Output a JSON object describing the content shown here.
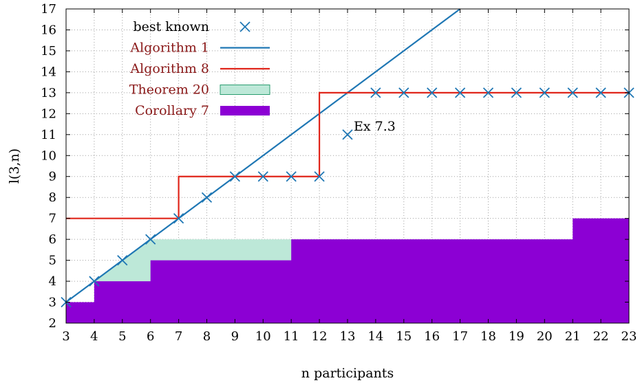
{
  "chart_data": {
    "type": "line",
    "xlabel": "n participants",
    "ylabel": "l(3,n)",
    "xlim": [
      3,
      23
    ],
    "ylim": [
      2,
      17
    ],
    "xticks": [
      3,
      4,
      5,
      6,
      7,
      8,
      9,
      10,
      11,
      12,
      13,
      14,
      15,
      16,
      17,
      18,
      19,
      20,
      21,
      22,
      23
    ],
    "yticks": [
      2,
      3,
      4,
      5,
      6,
      7,
      8,
      9,
      10,
      11,
      12,
      13,
      14,
      15,
      16,
      17
    ],
    "grid": true,
    "legend_position": "top-left",
    "colors": {
      "best_known": "#1f77b4",
      "algorithm1": "#1f77b4",
      "algorithm8": "#e0251a",
      "theorem20_fill": "#bde8d8",
      "theorem20_edge": "#2a9d6f",
      "corollary7": "#8c00d4",
      "legend_text": "#8b1a1a"
    },
    "series": [
      {
        "name": "best known",
        "kind": "scatter",
        "x": [
          3,
          4,
          5,
          6,
          7,
          8,
          9,
          10,
          11,
          12,
          13,
          14,
          15,
          16,
          17,
          18,
          19,
          20,
          21,
          22,
          23
        ],
        "y": [
          3,
          4,
          5,
          6,
          7,
          8,
          9,
          9,
          9,
          9,
          11,
          13,
          13,
          13,
          13,
          13,
          13,
          13,
          13,
          13,
          13
        ]
      },
      {
        "name": "Algorithm 1",
        "kind": "line",
        "x": [
          3,
          17
        ],
        "y": [
          3,
          17
        ]
      },
      {
        "name": "Algorithm 8",
        "kind": "step",
        "x": [
          3,
          7,
          7,
          12,
          12,
          23
        ],
        "y": [
          7,
          7,
          9,
          9,
          13,
          13
        ]
      },
      {
        "name": "Theorem 20",
        "kind": "area",
        "x": [
          3,
          4,
          4,
          5,
          6,
          6,
          11,
          11,
          23
        ],
        "y": [
          3,
          3,
          4,
          5,
          6,
          6,
          6,
          6,
          6
        ]
      },
      {
        "name": "Corollary 7",
        "kind": "area",
        "x": [
          3,
          4,
          4,
          6,
          6,
          11,
          11,
          21,
          21,
          23
        ],
        "y": [
          3,
          3,
          4,
          4,
          5,
          5,
          6,
          6,
          7,
          7
        ]
      }
    ],
    "annotations": [
      {
        "text": "Ex 7.3",
        "x": 13,
        "y": 11
      }
    ]
  }
}
